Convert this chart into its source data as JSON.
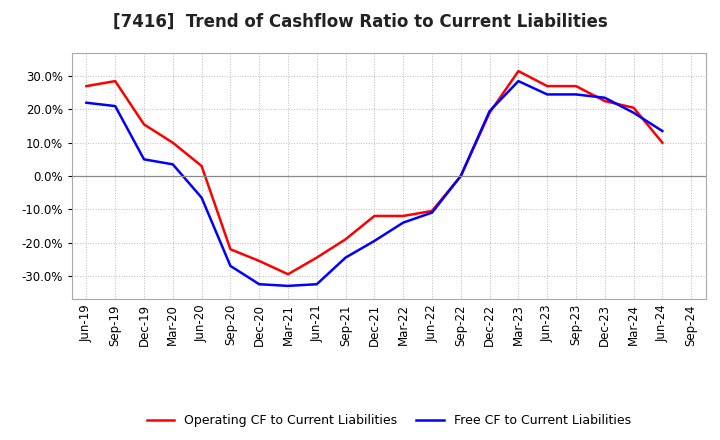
{
  "title": "[7416]  Trend of Cashflow Ratio to Current Liabilities",
  "x_labels": [
    "Jun-19",
    "Sep-19",
    "Dec-19",
    "Mar-20",
    "Jun-20",
    "Sep-20",
    "Dec-20",
    "Mar-21",
    "Jun-21",
    "Sep-21",
    "Dec-21",
    "Mar-22",
    "Jun-22",
    "Sep-22",
    "Dec-22",
    "Mar-23",
    "Jun-23",
    "Sep-23",
    "Dec-23",
    "Mar-24",
    "Jun-24",
    "Sep-24"
  ],
  "operating_cf": [
    0.27,
    0.285,
    0.155,
    0.1,
    0.03,
    -0.22,
    -0.255,
    -0.295,
    -0.245,
    -0.19,
    -0.12,
    -0.12,
    -0.105,
    0.0,
    0.19,
    0.315,
    0.27,
    0.27,
    0.225,
    0.205,
    0.1,
    null
  ],
  "free_cf": [
    0.22,
    0.21,
    0.05,
    0.035,
    -0.065,
    -0.27,
    -0.325,
    -0.33,
    -0.325,
    -0.245,
    -0.195,
    -0.14,
    -0.11,
    0.0,
    0.195,
    0.285,
    0.245,
    0.245,
    0.235,
    0.19,
    0.135,
    null
  ],
  "operating_color": "#ff0000",
  "free_color": "#0000ff",
  "ylim": [
    -0.37,
    0.37
  ],
  "yticks": [
    -0.3,
    -0.2,
    -0.1,
    0.0,
    0.1,
    0.2,
    0.3
  ],
  "background_color": "#ffffff",
  "grid_color": "#bbbbbb",
  "legend_operating": "Operating CF to Current Liabilities",
  "legend_free": "Free CF to Current Liabilities",
  "title_fontsize": 12,
  "tick_fontsize": 8.5
}
